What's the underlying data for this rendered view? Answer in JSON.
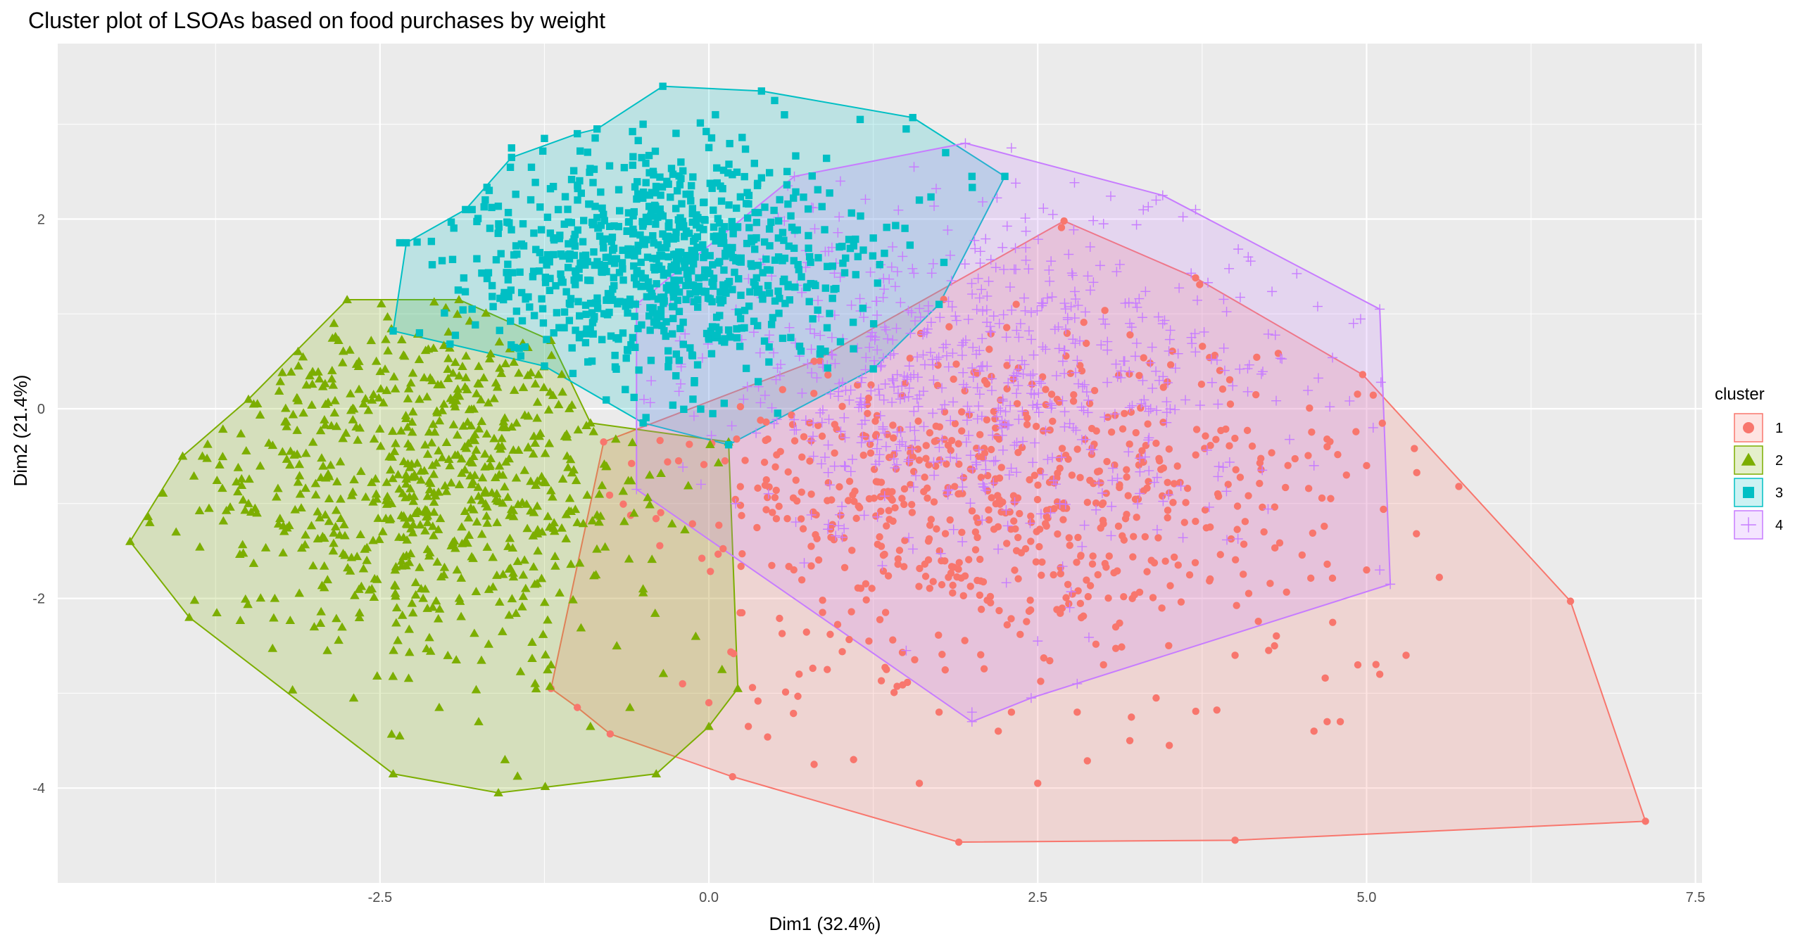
{
  "chart_data": {
    "type": "scatter",
    "title": "Cluster plot of LSOAs based on food purchases by weight",
    "xlabel": "Dim1 (32.4%)",
    "ylabel": "Dim2 (21.4%)",
    "xlim": [
      -4.95,
      7.55
    ],
    "ylim": [
      -5.0,
      3.85
    ],
    "x_ticks": [
      -2.5,
      0.0,
      2.5,
      5.0,
      7.5
    ],
    "x_tick_labels": [
      "-2.5",
      "0.0",
      "2.5",
      "5.0",
      "7.5"
    ],
    "y_ticks": [
      -4,
      -2,
      0,
      2
    ],
    "y_tick_labels": [
      "-4",
      "-2",
      "0",
      "2"
    ],
    "grid": true,
    "background": "#ebebeb",
    "legend": {
      "title": "cluster",
      "position": "right"
    },
    "series": [
      {
        "name": "1",
        "marker": "circle",
        "color": "#F8766D",
        "fill": "#F8766D",
        "hull": [
          [
            2.7,
            1.98
          ],
          [
            3.7,
            1.38
          ],
          [
            4.97,
            0.36
          ],
          [
            6.55,
            -2.03
          ],
          [
            7.12,
            -4.35
          ],
          [
            4.0,
            -4.55
          ],
          [
            1.9,
            -4.57
          ],
          [
            0.18,
            -3.88
          ],
          [
            -0.75,
            -3.43
          ],
          [
            -1.0,
            -3.15
          ],
          [
            -1.2,
            -2.95
          ],
          [
            -0.8,
            -0.35
          ],
          [
            0.8,
            0.5
          ]
        ],
        "cloud": {
          "cx": 2.2,
          "cy": -0.9,
          "sx": 1.25,
          "sy": 0.9,
          "n": 700,
          "seed": 11
        },
        "points": [
          [
            4.0,
            -2.6
          ],
          [
            4.3,
            -2.5
          ],
          [
            5.0,
            -1.7
          ],
          [
            5.3,
            -2.6
          ],
          [
            5.1,
            -2.8
          ],
          [
            4.8,
            -3.3
          ],
          [
            4.6,
            -3.4
          ],
          [
            3.5,
            -3.55
          ],
          [
            3.2,
            -3.5
          ],
          [
            2.5,
            -3.95
          ],
          [
            1.6,
            -3.95
          ],
          [
            1.1,
            -3.7
          ],
          [
            0.8,
            -3.75
          ],
          [
            4.7,
            -3.3
          ],
          [
            5.0,
            -0.6
          ],
          [
            4.7,
            -0.4
          ],
          [
            0.9,
            -2.75
          ],
          [
            3.4,
            -3.05
          ],
          [
            2.8,
            -3.2
          ],
          [
            2.2,
            -3.4
          ],
          [
            1.75,
            -3.2
          ],
          [
            1.35,
            -2.75
          ],
          [
            0.3,
            -3.35
          ],
          [
            -0.2,
            -2.9
          ],
          [
            0.0,
            -3.1
          ],
          [
            2.3,
            -3.2
          ],
          [
            3.0,
            -2.7
          ]
        ]
      },
      {
        "name": "2",
        "marker": "triangle",
        "color": "#7CAE00",
        "fill": "#7CAE00",
        "hull": [
          [
            -2.75,
            1.15
          ],
          [
            -1.9,
            1.15
          ],
          [
            -1.2,
            0.72
          ],
          [
            -0.9,
            -0.15
          ],
          [
            0.15,
            -0.35
          ],
          [
            0.22,
            -2.95
          ],
          [
            0.0,
            -3.35
          ],
          [
            -0.4,
            -3.85
          ],
          [
            -1.6,
            -4.05
          ],
          [
            -2.4,
            -3.85
          ],
          [
            -3.95,
            -2.2
          ],
          [
            -4.4,
            -1.4
          ],
          [
            -4.0,
            -0.5
          ],
          [
            -3.5,
            0.1
          ]
        ],
        "cloud": {
          "cx": -2.2,
          "cy": -0.7,
          "sx": 0.9,
          "sy": 0.95,
          "n": 720,
          "seed": 22
        },
        "points": [
          [
            -4.25,
            -1.2
          ],
          [
            -4.05,
            -1.3
          ],
          [
            -3.85,
            -0.5
          ],
          [
            -3.8,
            -1.05
          ],
          [
            -3.5,
            -1.0
          ],
          [
            -3.45,
            -1.05
          ],
          [
            -3.3,
            -2.0
          ],
          [
            -3.0,
            -2.3
          ],
          [
            -2.9,
            -2.55
          ],
          [
            -2.7,
            -3.05
          ],
          [
            -2.35,
            -3.45
          ],
          [
            -1.75,
            -3.3
          ],
          [
            -2.05,
            -3.15
          ],
          [
            -1.55,
            -3.7
          ],
          [
            -0.9,
            -3.35
          ],
          [
            -0.6,
            -3.15
          ],
          [
            -1.2,
            -2.7
          ],
          [
            -2.6,
            -1.6
          ],
          [
            -2.85,
            0.9
          ],
          [
            -2.2,
            0.1
          ],
          [
            -1.3,
            -1.5
          ],
          [
            -0.5,
            -1.9
          ],
          [
            -0.1,
            -2.4
          ],
          [
            0.1,
            -2.75
          ],
          [
            -0.7,
            -2.5
          ],
          [
            -1.0,
            -1.2
          ],
          [
            -0.45,
            -0.7
          ]
        ]
      },
      {
        "name": "3",
        "marker": "square",
        "color": "#00BFC4",
        "fill": "#00BFC4",
        "hull": [
          [
            -0.35,
            3.4
          ],
          [
            0.4,
            3.35
          ],
          [
            1.55,
            3.07
          ],
          [
            2.25,
            2.45
          ],
          [
            1.75,
            1.1
          ],
          [
            1.25,
            0.42
          ],
          [
            0.15,
            -0.38
          ],
          [
            -0.5,
            -0.15
          ],
          [
            -1.25,
            0.45
          ],
          [
            -2.4,
            0.82
          ],
          [
            -2.3,
            1.75
          ],
          [
            -1.85,
            2.1
          ],
          [
            -1.5,
            2.65
          ],
          [
            -1.0,
            2.9
          ],
          [
            -0.85,
            2.95
          ]
        ],
        "cloud": {
          "cx": -0.4,
          "cy": 1.55,
          "sx": 0.75,
          "sy": 0.6,
          "n": 820,
          "seed": 33
        },
        "points": [
          [
            -1.25,
            2.85
          ],
          [
            -1.5,
            2.75
          ],
          [
            -1.8,
            2.1
          ],
          [
            -2.35,
            1.75
          ],
          [
            -0.5,
            3.0
          ],
          [
            0.05,
            3.1
          ],
          [
            0.5,
            3.25
          ],
          [
            1.15,
            3.05
          ],
          [
            1.5,
            2.95
          ],
          [
            1.8,
            2.7
          ],
          [
            2.0,
            2.45
          ],
          [
            1.6,
            2.2
          ],
          [
            -2.2,
            0.8
          ],
          [
            -1.8,
            1.05
          ],
          [
            0.9,
            1.5
          ],
          [
            1.25,
            1.8
          ]
        ]
      },
      {
        "name": "4",
        "marker": "cross",
        "color": "#C77CFF",
        "fill": "#C77CFF",
        "hull": [
          [
            1.95,
            2.8
          ],
          [
            3.45,
            2.25
          ],
          [
            5.1,
            1.05
          ],
          [
            5.18,
            -1.85
          ],
          [
            2.45,
            -3.05
          ],
          [
            2.0,
            -3.3
          ],
          [
            -0.55,
            -0.85
          ],
          [
            -0.55,
            1.1
          ],
          [
            0.65,
            2.45
          ]
        ],
        "cloud": {
          "cx": 2.0,
          "cy": 0.3,
          "sx": 1.15,
          "sy": 0.85,
          "n": 700,
          "seed": 44
        },
        "points": [
          [
            2.3,
            2.75
          ],
          [
            3.4,
            2.2
          ],
          [
            3.7,
            2.1
          ],
          [
            4.1,
            1.6
          ],
          [
            4.9,
            0.9
          ],
          [
            5.05,
            -0.2
          ],
          [
            5.1,
            -1.7
          ],
          [
            4.6,
            -0.6
          ],
          [
            2.8,
            -2.9
          ],
          [
            2.5,
            -2.45
          ],
          [
            2.0,
            -3.2
          ],
          [
            1.5,
            -2.55
          ],
          [
            0.6,
            2.35
          ],
          [
            1.0,
            2.4
          ],
          [
            3.0,
            1.95
          ],
          [
            2.9,
            1.25
          ],
          [
            3.2,
            0.9
          ]
        ]
      }
    ]
  }
}
